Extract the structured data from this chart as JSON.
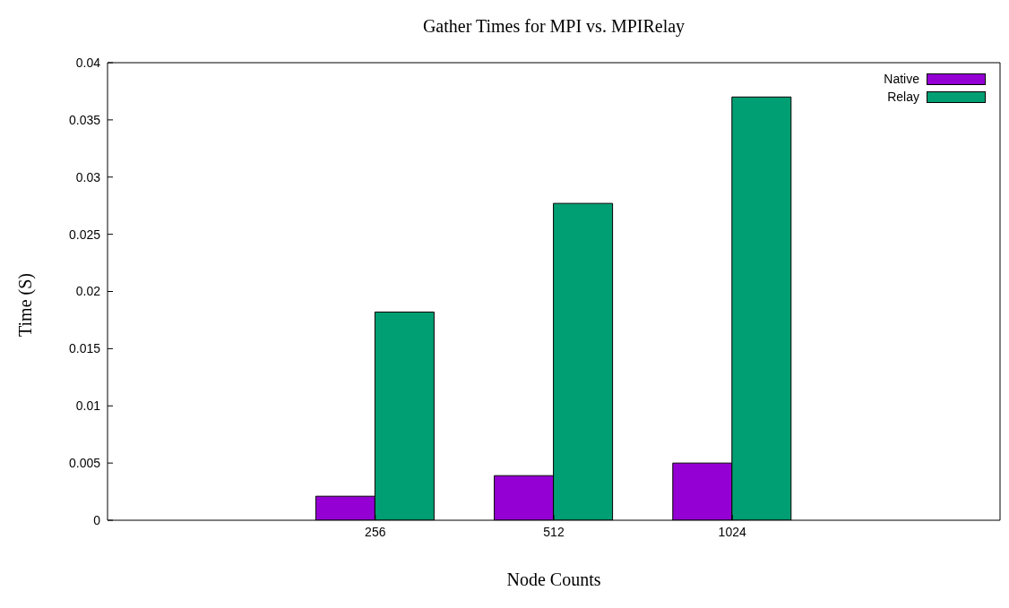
{
  "chart_data": {
    "type": "bar",
    "title": "Gather Times for MPI vs. MPIRelay",
    "xlabel": "Node Counts",
    "ylabel": "Time (S)",
    "categories": [
      "256",
      "512",
      "1024"
    ],
    "series": [
      {
        "name": "Native",
        "color": "#9400d3",
        "values": [
          0.0021,
          0.0039,
          0.005
        ]
      },
      {
        "name": "Relay",
        "color": "#009e73",
        "values": [
          0.0182,
          0.0277,
          0.037
        ]
      }
    ],
    "ylim": [
      0,
      0.04
    ],
    "yticks": [
      0,
      0.005,
      0.01,
      0.015,
      0.02,
      0.025,
      0.03,
      0.035,
      0.04
    ],
    "legend": "top right"
  }
}
